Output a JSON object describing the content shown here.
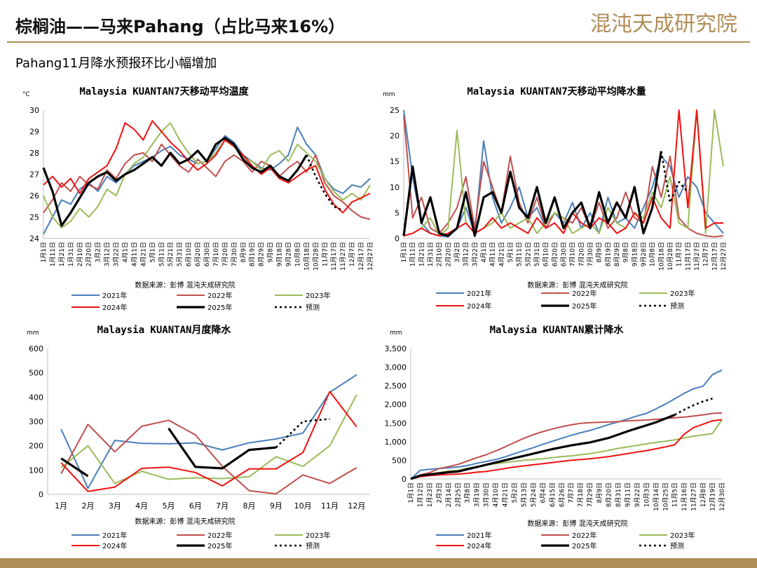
{
  "header": {
    "title": "棕榈油——马来Pahang（占比马来16%）",
    "logo_text": "混沌天成研究院",
    "subtitle": "Pahang11月降水预报环比小幅增加"
  },
  "colors": {
    "y2021": "#4a7ebb",
    "y2022": "#c0504d",
    "y2023": "#9bbb59",
    "y2024": "#ee1111",
    "y2025": "#000000",
    "forecast": "#000000",
    "accent": "#b08d57"
  },
  "chart_data": [
    {
      "id": "temp",
      "type": "line",
      "title": "Malaysia KUANTAN7天移动平均温度",
      "unit": "°C",
      "ylim": [
        24,
        30
      ],
      "yticks": [
        24,
        25,
        26,
        27,
        28,
        29,
        30
      ],
      "categories": [
        "1月1日",
        "1月11日",
        "1月21日",
        "1月31日",
        "2月10日",
        "2月20日",
        "3月2日",
        "3月12日",
        "3月22日",
        "4月1日",
        "4月11日",
        "4月21日",
        "5月1日",
        "5月11日",
        "5月21日",
        "5月31日",
        "6月10日",
        "6月20日",
        "6月30日",
        "7月10日",
        "7月20日",
        "7月30日",
        "8月9日",
        "8月19日",
        "8月29日",
        "9月8日",
        "9月18日",
        "9月28日",
        "10月8日",
        "10月18日",
        "10月28日",
        "11月7日",
        "11月17日",
        "11月27日",
        "12月7日",
        "12月17日",
        "12月27日"
      ],
      "source": "数据来源：彭博  混沌天成研究院",
      "legend": [
        "2021年",
        "2022年",
        "2023年",
        "2024年",
        "2025年",
        "预测"
      ],
      "series": [
        {
          "name": "2021年",
          "values": [
            24.2,
            25.0,
            25.8,
            25.6,
            26.3,
            26.6,
            26.2,
            26.9,
            26.6,
            27.0,
            27.4,
            27.6,
            27.8,
            28.1,
            28.3,
            27.9,
            27.7,
            27.5,
            27.6,
            28.2,
            28.8,
            28.5,
            27.9,
            27.6,
            27.3,
            27.2,
            27.5,
            27.9,
            29.2,
            28.4,
            27.9,
            26.8,
            26.3,
            26.1,
            26.5,
            26.4,
            26.8
          ]
        },
        {
          "name": "2022年",
          "values": [
            25.2,
            25.8,
            26.6,
            26.2,
            26.9,
            26.5,
            26.3,
            27.2,
            26.8,
            27.5,
            27.9,
            28.0,
            27.6,
            28.4,
            27.9,
            27.4,
            27.1,
            27.7,
            27.3,
            26.9,
            27.6,
            27.9,
            27.6,
            27.1,
            27.6,
            27.4,
            26.9,
            27.3,
            27.6,
            27.1,
            27.9,
            26.6,
            26.0,
            25.7,
            25.3,
            25.0,
            24.9
          ]
        },
        {
          "name": "2023年",
          "values": [
            26.0,
            25.0,
            24.5,
            24.8,
            25.4,
            25.0,
            25.5,
            26.3,
            26.0,
            27.0,
            27.5,
            27.8,
            28.4,
            29.0,
            29.4,
            28.6,
            28.0,
            27.5,
            27.6,
            28.0,
            28.6,
            28.3,
            27.8,
            27.6,
            27.2,
            27.9,
            28.1,
            27.6,
            28.4,
            28.0,
            27.6,
            26.8,
            26.2,
            25.8,
            26.1,
            25.8,
            26.5
          ]
        },
        {
          "name": "2024年",
          "values": [
            26.5,
            26.9,
            26.4,
            26.8,
            26.1,
            26.8,
            27.1,
            27.4,
            28.2,
            29.4,
            29.1,
            28.6,
            29.5,
            29.0,
            28.5,
            28.1,
            27.6,
            27.2,
            27.5,
            27.9,
            28.6,
            28.3,
            27.9,
            27.4,
            27.0,
            27.3,
            26.8,
            26.6,
            26.9,
            27.2,
            27.4,
            26.3,
            25.6,
            25.2,
            25.7,
            25.9,
            26.1
          ]
        },
        {
          "name": "2025年",
          "values": [
            27.3,
            26.2,
            24.6,
            25.2,
            25.9,
            26.6,
            26.9,
            27.1,
            26.7,
            27.0,
            27.2,
            27.5,
            27.8,
            27.4,
            28.0,
            27.5,
            27.7,
            28.1,
            27.6,
            28.4,
            28.7,
            28.4,
            27.7,
            27.3,
            27.1,
            27.4,
            26.9,
            26.7,
            27.2,
            27.9,
            null,
            null,
            null,
            null,
            null,
            null,
            null
          ]
        },
        {
          "name": "预测",
          "values": [
            null,
            null,
            null,
            null,
            null,
            null,
            null,
            null,
            null,
            null,
            null,
            null,
            null,
            null,
            null,
            null,
            null,
            null,
            null,
            null,
            null,
            null,
            null,
            null,
            null,
            null,
            null,
            null,
            null,
            27.9,
            26.9,
            26.1,
            25.5,
            25.3,
            null,
            null,
            null
          ]
        }
      ]
    },
    {
      "id": "rain7",
      "type": "line",
      "title": "Malaysia KUANTAN7天移动平均降水量",
      "unit": "mm",
      "ylim": [
        0,
        25
      ],
      "yticks": [
        0,
        5,
        10,
        15,
        20,
        25
      ],
      "categories": [
        "1月1日",
        "1月11日",
        "1月21日",
        "1月31日",
        "2月10日",
        "2月20日",
        "3月2日",
        "3月12日",
        "3月22日",
        "4月1日",
        "4月11日",
        "4月21日",
        "5月1日",
        "5月11日",
        "5月21日",
        "5月31日",
        "6月10日",
        "6月20日",
        "6月30日",
        "7月10日",
        "7月20日",
        "7月30日",
        "8月9日",
        "8月19日",
        "8月29日",
        "9月8日",
        "9月18日",
        "9月28日",
        "10月8日",
        "10月18日",
        "10月28日",
        "11月7日",
        "11月17日",
        "11月27日",
        "12月7日",
        "12月17日",
        "12月27日"
      ],
      "source": "数据来源：彭博  混沌天成研究院",
      "legend": [
        "2021年",
        "2022年",
        "2023年",
        "2024年",
        "2025年",
        "预测"
      ],
      "series": [
        {
          "name": "2021年",
          "values": [
            25,
            12,
            3,
            1,
            0.5,
            0.3,
            2,
            6,
            1,
            19,
            8,
            3,
            6,
            10,
            4,
            6,
            2,
            5,
            3,
            7,
            2,
            5,
            1,
            8,
            3,
            4,
            2,
            6,
            10,
            16,
            14,
            8,
            12,
            10,
            5,
            3,
            1
          ]
        },
        {
          "name": "2022年",
          "values": [
            24,
            4,
            8,
            2,
            1,
            3,
            6,
            12,
            2,
            15,
            10,
            5,
            16,
            7,
            3,
            8,
            2,
            5,
            4,
            3,
            6,
            2,
            7,
            2,
            4,
            9,
            4,
            3,
            14,
            8,
            16,
            4,
            2,
            1,
            0.5,
            0.3,
            0.5
          ]
        },
        {
          "name": "2023年",
          "values": [
            0.5,
            1,
            2,
            4,
            0.5,
            2,
            21,
            3,
            1,
            2,
            3,
            5,
            2,
            3,
            4,
            1,
            3,
            5,
            4,
            1,
            2,
            3,
            1,
            6,
            3,
            2,
            5,
            4,
            9,
            6,
            12,
            3,
            2,
            26,
            1,
            25,
            14
          ]
        },
        {
          "name": "2024年",
          "values": [
            0.5,
            1,
            2,
            1,
            0.5,
            1,
            2,
            3,
            1,
            2,
            4,
            2,
            3,
            2,
            1,
            4,
            2,
            3,
            1,
            5,
            3,
            2,
            4,
            3,
            1,
            2,
            5,
            3,
            8,
            4,
            2,
            26,
            6,
            26,
            2,
            3,
            3
          ]
        },
        {
          "name": "2025年",
          "values": [
            0.5,
            14,
            3,
            8,
            1,
            0.5,
            2,
            9,
            0.5,
            8,
            9,
            5,
            13,
            6,
            4,
            10,
            3,
            8,
            2,
            5,
            7,
            2,
            9,
            3,
            7,
            4,
            10,
            1,
            6,
            17,
            null,
            null,
            null,
            null,
            null,
            null,
            null
          ]
        },
        {
          "name": "预测",
          "values": [
            null,
            null,
            null,
            null,
            null,
            null,
            null,
            null,
            null,
            null,
            null,
            null,
            null,
            null,
            null,
            null,
            null,
            null,
            null,
            null,
            null,
            null,
            null,
            null,
            null,
            null,
            null,
            null,
            null,
            17,
            7,
            11,
            9,
            null,
            null,
            null,
            null
          ]
        }
      ]
    },
    {
      "id": "monthly",
      "type": "line",
      "title": "Malaysia KUANTAN月度降水",
      "unit": "mm",
      "ylim": [
        0,
        600
      ],
      "yticks": [
        0,
        100,
        200,
        300,
        400,
        500,
        600
      ],
      "categories": [
        "1月",
        "2月",
        "3月",
        "4月",
        "5月",
        "6月",
        "7月",
        "8月",
        "9月",
        "10月",
        "11月",
        "12月"
      ],
      "source": "数据来源：彭博  混沌天成研究院",
      "legend": [
        "2021年",
        "2022年",
        "2023年",
        "2024年",
        "2025年",
        "预测"
      ],
      "series": [
        {
          "name": "2021年",
          "values": [
            268,
            25,
            222,
            210,
            208,
            212,
            183,
            212,
            228,
            252,
            420,
            492
          ]
        },
        {
          "name": "2022年",
          "values": [
            85,
            288,
            175,
            280,
            305,
            245,
            115,
            15,
            2,
            80,
            45,
            110
          ]
        },
        {
          "name": "2023年",
          "values": [
            110,
            200,
            45,
            95,
            62,
            68,
            65,
            72,
            155,
            115,
            200,
            410
          ]
        },
        {
          "name": "2024年",
          "values": [
            130,
            12,
            30,
            107,
            112,
            90,
            35,
            105,
            105,
            172,
            423,
            278
          ]
        },
        {
          "name": "2025年",
          "values": [
            148,
            75,
            null,
            null,
            272,
            113,
            107,
            183,
            193,
            null,
            null,
            null
          ]
        },
        {
          "name": "预测",
          "values": [
            null,
            null,
            null,
            null,
            null,
            null,
            null,
            null,
            193,
            300,
            310,
            null
          ]
        }
      ]
    },
    {
      "id": "cumulative",
      "type": "line",
      "title": "Malaysia KUANTAN累计降水",
      "unit": "mm",
      "ylim": [
        0,
        3500
      ],
      "yticks": [
        "0",
        "500",
        "1,000",
        "1,500",
        "2,000",
        "2,500",
        "3,000",
        "3,500"
      ],
      "categories": [
        "1月1日",
        "1月12日",
        "1月23日",
        "2月3日",
        "2月14日",
        "2月25日",
        "3月8日",
        "3月19日",
        "3月30日",
        "4月10日",
        "4月21日",
        "5月2日",
        "5月13日",
        "5月24日",
        "6月4日",
        "6月15日",
        "6月26日",
        "7月7日",
        "7月18日",
        "7月29日",
        "8月9日",
        "8月20日",
        "8月31日",
        "9月11日",
        "9月22日",
        "10月3日",
        "10月14日",
        "10月25日",
        "11月5日",
        "11月16日",
        "11月27日",
        "12月8日",
        "12月19日",
        "12月30日"
      ],
      "source": "数据来源：彭博  混沌天成研究院",
      "legend": [
        "2021年",
        "2022年",
        "2023年",
        "2024年",
        "2025年",
        "预测"
      ],
      "series": [
        {
          "name": "2021年",
          "values": [
            0,
            230,
            260,
            280,
            300,
            320,
            360,
            420,
            470,
            520,
            590,
            680,
            760,
            840,
            930,
            1010,
            1090,
            1170,
            1240,
            1300,
            1380,
            1460,
            1530,
            1610,
            1690,
            1760,
            1880,
            2010,
            2150,
            2300,
            2420,
            2490,
            2800,
            2920
          ]
        },
        {
          "name": "2022年",
          "values": [
            0,
            110,
            170,
            280,
            330,
            390,
            480,
            570,
            650,
            750,
            860,
            980,
            1090,
            1190,
            1270,
            1340,
            1400,
            1450,
            1490,
            1510,
            1520,
            1530,
            1540,
            1560,
            1570,
            1580,
            1600,
            1620,
            1640,
            1660,
            1690,
            1720,
            1760,
            1770
          ]
        },
        {
          "name": "2023年",
          "values": [
            0,
            90,
            130,
            170,
            210,
            230,
            290,
            330,
            370,
            410,
            440,
            470,
            500,
            520,
            540,
            570,
            600,
            620,
            650,
            680,
            720,
            770,
            820,
            860,
            900,
            940,
            980,
            1010,
            1050,
            1100,
            1150,
            1180,
            1220,
            1590
          ]
        },
        {
          "name": "2024年",
          "values": [
            0,
            60,
            90,
            110,
            120,
            130,
            150,
            180,
            200,
            240,
            280,
            320,
            350,
            380,
            410,
            440,
            470,
            500,
            520,
            540,
            570,
            600,
            640,
            680,
            720,
            760,
            810,
            860,
            920,
            1200,
            1380,
            1470,
            1560,
            1590
          ]
        },
        {
          "name": "2025年",
          "values": [
            0,
            90,
            120,
            150,
            180,
            200,
            260,
            320,
            380,
            440,
            500,
            560,
            620,
            680,
            740,
            800,
            850,
            900,
            940,
            980,
            1040,
            1100,
            1190,
            1280,
            1360,
            1440,
            1520,
            1620,
            1720,
            null,
            null,
            null,
            null,
            null
          ]
        },
        {
          "name": "预测",
          "values": [
            null,
            null,
            null,
            null,
            null,
            null,
            null,
            null,
            null,
            null,
            null,
            null,
            null,
            null,
            null,
            null,
            null,
            null,
            null,
            null,
            null,
            null,
            null,
            null,
            null,
            null,
            null,
            null,
            1720,
            1860,
            1980,
            2080,
            2160,
            null
          ]
        }
      ]
    }
  ]
}
